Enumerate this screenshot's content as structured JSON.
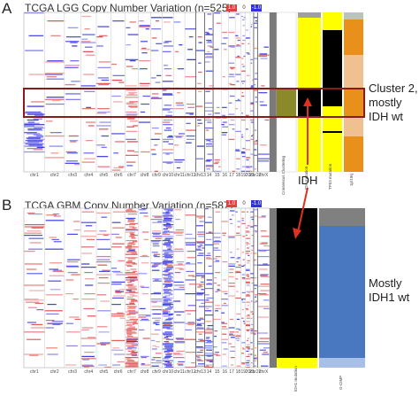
{
  "panel_a": {
    "letter": "A",
    "title": "TCGA LGG Copy Number Variation (n=525)",
    "legend": [
      "1.0",
      "0",
      "-1.0"
    ],
    "chromosomes": [
      "chr1",
      "chr2",
      "chr3",
      "chr4",
      "chr5",
      "chr6",
      "chr7",
      "chr8",
      "chr9",
      "chr10",
      "chr11",
      "chr12",
      "chr13",
      "14",
      "15",
      "16",
      "17",
      "18",
      "19",
      "20",
      "21",
      "chr22",
      "chrX"
    ],
    "track_labels": [
      "Consensus Clustering",
      "IDH mutation",
      "TP53 mutation",
      "1p/19q"
    ],
    "annotation": [
      "Cluster 2,",
      "mostly",
      "IDH wt"
    ],
    "arrow_label": "IDH"
  },
  "panel_b": {
    "letter": "B",
    "title": "TCGA GBM Copy Number Variation (n=587)",
    "legend": [
      "1.0",
      "0",
      "-1.0"
    ],
    "chromosomes": [
      "chr1",
      "chr2",
      "chr3",
      "chr4",
      "chr5",
      "chr6",
      "chr7",
      "chr8",
      "chr9",
      "chr10",
      "chr11",
      "chr12",
      "chr13",
      "14",
      "15",
      "16",
      "17",
      "18",
      "19",
      "20",
      "21",
      "chr22",
      "chrX"
    ],
    "track_labels": [
      "IDH1 mutation",
      "G-CIMP"
    ],
    "annotation": [
      "Mostly",
      "IDH1 wt"
    ]
  },
  "colors": {
    "gain": "#e05050",
    "loss": "#3a3ae0",
    "idh_mut": "#ffff00",
    "idh_wt": "#000000",
    "highlight_box": "#8b1a1a",
    "arrow": "#e03020",
    "gcimp": "#4a78c0",
    "cluster_olive": "#8a8a2a",
    "orange": "#e8901a"
  }
}
